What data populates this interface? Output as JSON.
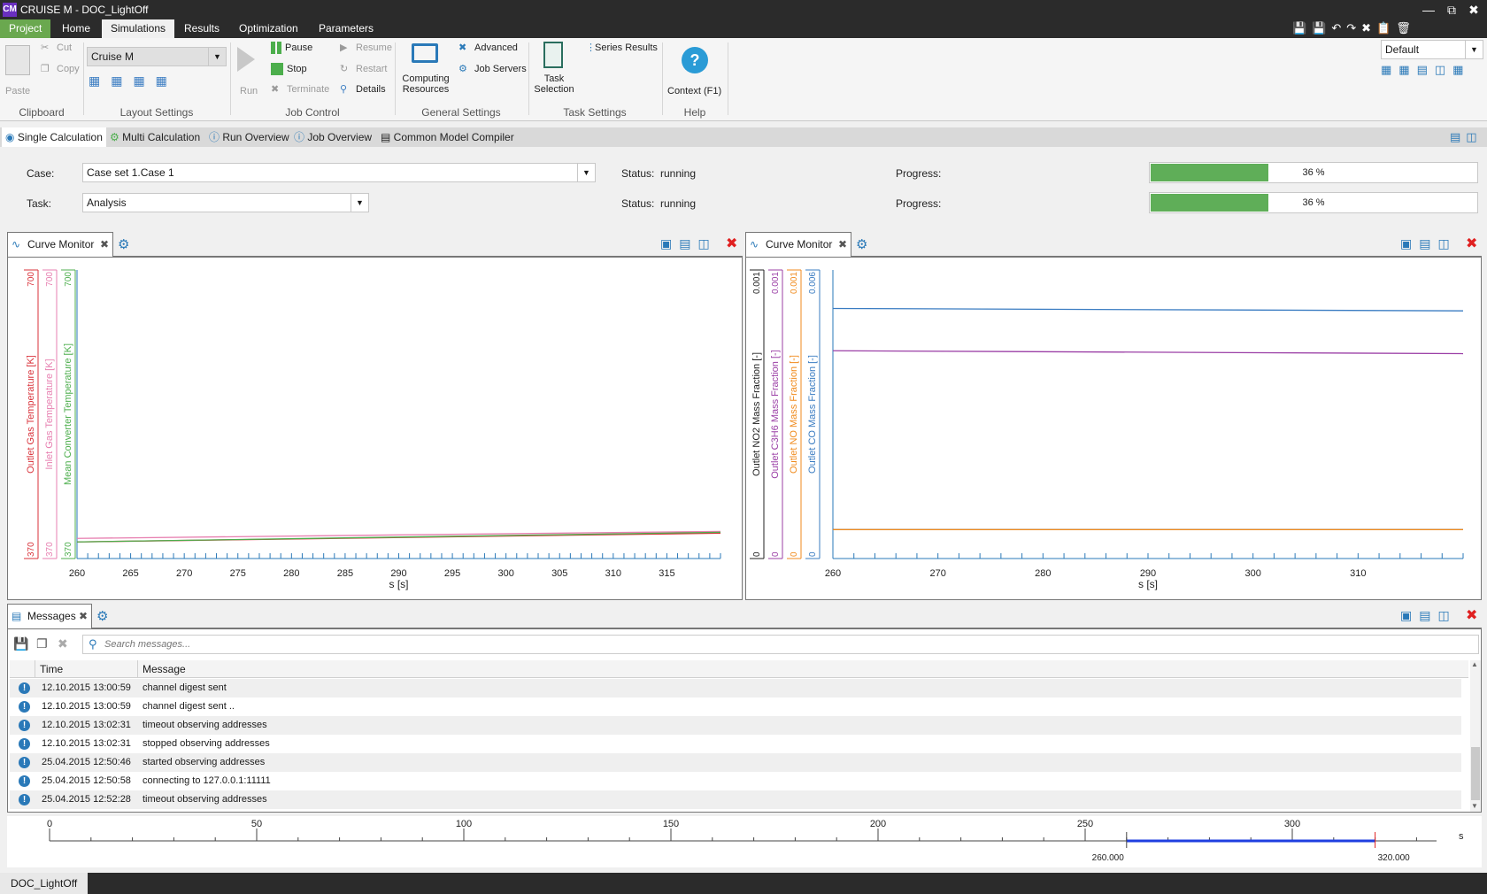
{
  "window": {
    "title": "CRUISE M - DOC_LightOff",
    "logo": "CM"
  },
  "menu": [
    "Project",
    "Home",
    "Simulations",
    "Results",
    "Optimization",
    "Parameters"
  ],
  "ribbon": {
    "clipboard": {
      "cut": "Cut",
      "copy": "Copy",
      "paste": "Paste",
      "label": "Clipboard"
    },
    "layout": {
      "selected": "Cruise M",
      "label": "Layout Settings"
    },
    "job": {
      "run": "Run",
      "pause": "Pause",
      "stop": "Stop",
      "terminate": "Terminate",
      "resume": "Resume",
      "restart": "Restart",
      "details": "Details",
      "label": "Job Control"
    },
    "general": {
      "computing": "Computing\nResources",
      "advanced": "Advanced",
      "job_servers": "Job Servers",
      "label": "General Settings"
    },
    "task": {
      "selection": "Task\nSelection",
      "series": "Series Results",
      "label": "Task Settings"
    },
    "help": {
      "context": "Context (F1)",
      "label": "Help"
    },
    "layout_selector": "Default"
  },
  "subtabs": [
    "Single Calculation",
    "Multi Calculation",
    "Run Overview",
    "Job Overview",
    "Common Model Compiler"
  ],
  "form": {
    "case_label": "Case:",
    "case_value": "Case set 1.Case 1",
    "task_label": "Task:",
    "task_value": "Analysis",
    "status_label": "Status:",
    "status_value": "running",
    "progress_label": "Progress:",
    "progress_text": "36 %",
    "progress_fraction": 0.36
  },
  "left_monitor": {
    "tab": "Curve Monitor",
    "chart_data": {
      "type": "line",
      "xlabel": "s [s]",
      "x_ticks": [
        "260",
        "265",
        "270",
        "275",
        "280",
        "285",
        "290",
        "295",
        "300",
        "305",
        "310",
        "315"
      ],
      "xlim": [
        260,
        320
      ],
      "series": [
        {
          "name": "Outlet Gas Temperature [K]",
          "color": "#d9323a",
          "ylim": [
            370,
            700
          ],
          "top": "700",
          "bottom": "370",
          "x": [
            260,
            320
          ],
          "values": [
            389,
            399
          ]
        },
        {
          "name": "Inlet Gas Temperature [K]",
          "color": "#e77fb0",
          "ylim": [
            370,
            700
          ],
          "top": "700",
          "bottom": "370",
          "x": [
            260,
            320
          ],
          "values": [
            393,
            401
          ]
        },
        {
          "name": "Mean Converter Temperature [K]",
          "color": "#4cae4c",
          "ylim": [
            370,
            700
          ],
          "top": "700",
          "bottom": "370",
          "x": [
            260,
            320
          ],
          "values": [
            389,
            400
          ]
        }
      ]
    }
  },
  "right_monitor": {
    "tab": "Curve Monitor",
    "chart_data": {
      "type": "line",
      "xlabel": "s [s]",
      "x_ticks": [
        "260",
        "270",
        "280",
        "290",
        "300",
        "310"
      ],
      "xlim": [
        260,
        320
      ],
      "series": [
        {
          "name": "Outlet NO2 Mass Fraction [-]",
          "color": "#222222",
          "ylim": [
            0,
            0.001
          ],
          "top": "0.001",
          "bottom": "0",
          "x": [
            260,
            320
          ],
          "values": [
            0.0001,
            0.0001
          ]
        },
        {
          "name": "Outlet C3H6 Mass Fraction [-]",
          "color": "#9b3fa6",
          "ylim": [
            0,
            0.001
          ],
          "top": "0.001",
          "bottom": "0",
          "x": [
            260,
            320
          ],
          "values": [
            0.00072,
            0.00071
          ]
        },
        {
          "name": "Outlet NO Mass Fraction [-]",
          "color": "#f08a1c",
          "ylim": [
            0,
            0.001
          ],
          "top": "0.001",
          "bottom": "0",
          "x": [
            260,
            320
          ],
          "values": [
            0.0001,
            0.0001
          ]
        },
        {
          "name": "Outlet CO Mass Fraction [-]",
          "color": "#3a7cc2",
          "ylim": [
            0,
            0.006
          ],
          "top": "0.006",
          "bottom": "0",
          "x": [
            260,
            320
          ],
          "values": [
            0.0052,
            0.00515
          ]
        }
      ]
    }
  },
  "messages": {
    "tab": "Messages",
    "search_placeholder": "Search messages...",
    "col_time": "Time",
    "col_message": "Message",
    "rows": [
      {
        "time": "12.10.2015 13:00:59",
        "message": "channel digest sent"
      },
      {
        "time": "12.10.2015 13:00:59",
        "message": "channel digest sent .."
      },
      {
        "time": "12.10.2015 13:02:31",
        "message": "timeout observing addresses"
      },
      {
        "time": "12.10.2015 13:02:31",
        "message": "stopped observing addresses"
      },
      {
        "time": "25.04.2015 12:50:46",
        "message": "started observing addresses"
      },
      {
        "time": "25.04.2015 12:50:58",
        "message": "connecting to 127.0.0.1:11111"
      },
      {
        "time": "25.04.2015 12:52:28",
        "message": "timeout observing addresses"
      }
    ]
  },
  "timeline": {
    "ticks": [
      "0",
      "50",
      "100",
      "150",
      "200",
      "250",
      "300"
    ],
    "unit": "s",
    "range_start": "260.000",
    "range_end": "320.000"
  },
  "document_tab": "DOC_LightOff"
}
